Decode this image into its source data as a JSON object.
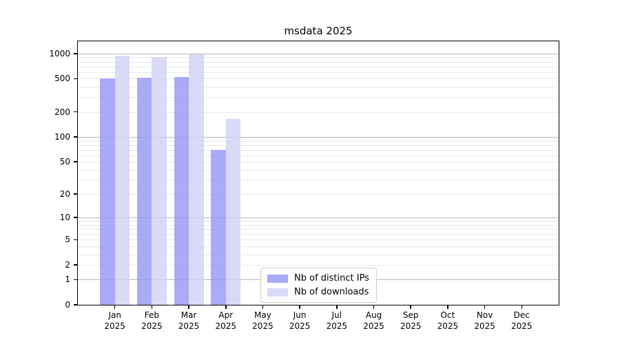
{
  "chart_data": {
    "type": "bar",
    "title": "msdata 2025",
    "categories": [
      "Jan",
      "Feb",
      "Mar",
      "Apr",
      "May",
      "Jun",
      "Jul",
      "Aug",
      "Sep",
      "Oct",
      "Nov",
      "Dec"
    ],
    "year_label": "2025",
    "series": [
      {
        "name": "Nb of distinct IPs",
        "key": "distinct-ips",
        "color": "rgba(149,149,246,0.8)",
        "values": [
          500,
          512,
          522,
          70,
          0,
          0,
          0,
          0,
          0,
          0,
          0,
          0
        ]
      },
      {
        "name": "Nb of downloads",
        "key": "downloads",
        "color": "rgba(208,208,246,0.8)",
        "values": [
          935,
          900,
          985,
          165,
          0,
          0,
          0,
          0,
          0,
          0,
          0,
          0
        ]
      }
    ],
    "y_scale": "log1p",
    "y_axis_max": 1400,
    "y_ticks": [
      0,
      1,
      2,
      5,
      10,
      20,
      50,
      100,
      200,
      500,
      1000
    ],
    "y_major_gridlines": [
      1,
      10,
      100,
      1000
    ],
    "y_minor_gridlines": [
      2,
      3,
      4,
      5,
      6,
      7,
      8,
      9,
      20,
      30,
      40,
      50,
      60,
      70,
      80,
      90,
      200,
      300,
      400,
      500,
      600,
      700,
      800,
      900
    ],
    "grid": true,
    "legend_position": "bottom-center",
    "colors": {
      "major_grid": "#b8b8b8",
      "minor_grid": "#e8e8e8",
      "axis": "#000000",
      "background": "#ffffff"
    }
  }
}
